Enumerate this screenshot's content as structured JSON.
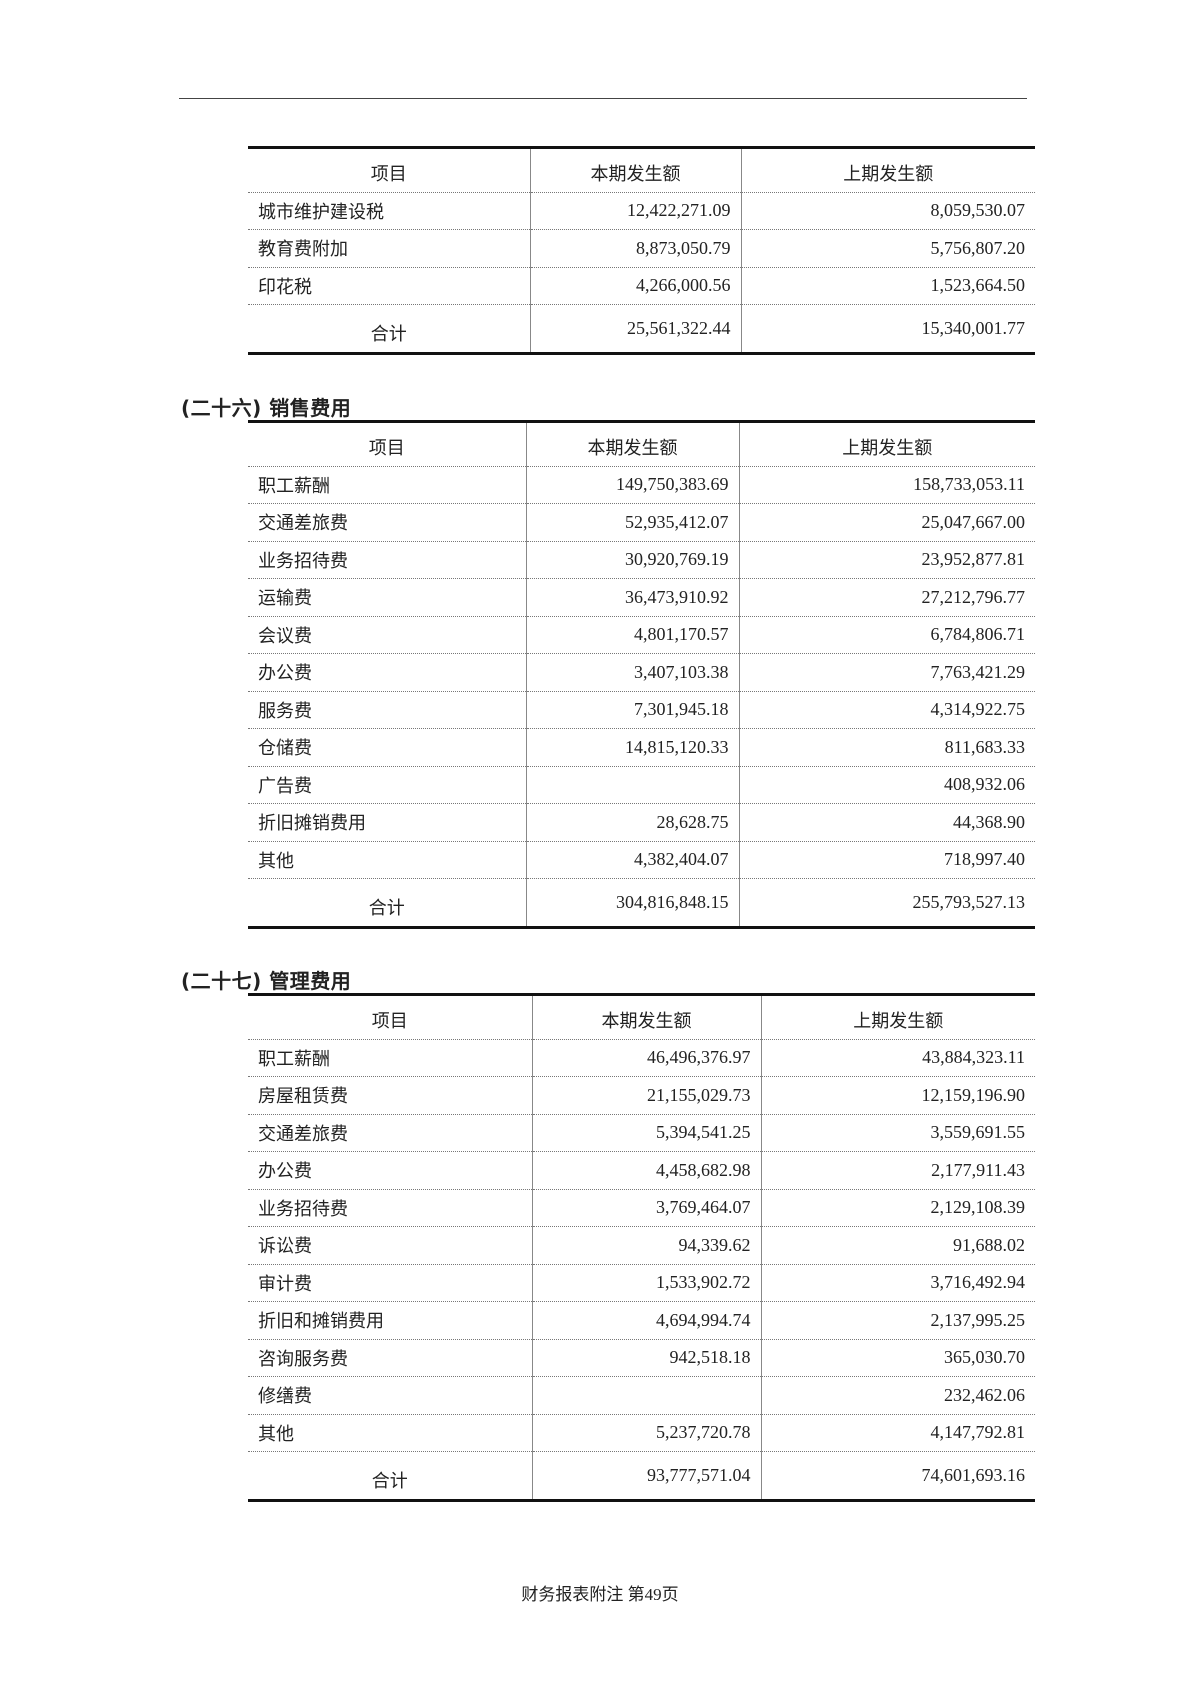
{
  "tables": [
    {
      "title": "",
      "headers": [
        "项目",
        "本期发生额",
        "上期发生额"
      ],
      "rows": [
        [
          "城市维护建设税",
          "12,422,271.09",
          "8,059,530.07"
        ],
        [
          "教育费附加",
          "8,873,050.79",
          "5,756,807.20"
        ],
        [
          "印花税",
          "4,266,000.56",
          "1,523,664.50"
        ]
      ],
      "total": [
        "合计",
        "25,561,322.44",
        "15,340,001.77"
      ]
    },
    {
      "title": "(二十六) 销售费用",
      "headers": [
        "项目",
        "本期发生额",
        "上期发生额"
      ],
      "rows": [
        [
          "职工薪酬",
          "149,750,383.69",
          "158,733,053.11"
        ],
        [
          "交通差旅费",
          "52,935,412.07",
          "25,047,667.00"
        ],
        [
          "业务招待费",
          "30,920,769.19",
          "23,952,877.81"
        ],
        [
          "运输费",
          "36,473,910.92",
          "27,212,796.77"
        ],
        [
          "会议费",
          "4,801,170.57",
          "6,784,806.71"
        ],
        [
          "办公费",
          "3,407,103.38",
          "7,763,421.29"
        ],
        [
          "服务费",
          "7,301,945.18",
          "4,314,922.75"
        ],
        [
          "仓储费",
          "14,815,120.33",
          "811,683.33"
        ],
        [
          "广告费",
          "",
          "408,932.06"
        ],
        [
          "折旧摊销费用",
          "28,628.75",
          "44,368.90"
        ],
        [
          "其他",
          "4,382,404.07",
          "718,997.40"
        ]
      ],
      "total": [
        "合计",
        "304,816,848.15",
        "255,793,527.13"
      ]
    },
    {
      "title": "(二十七) 管理费用",
      "headers": [
        "项目",
        "本期发生额",
        "上期发生额"
      ],
      "rows": [
        [
          "职工薪酬",
          "46,496,376.97",
          "43,884,323.11"
        ],
        [
          "房屋租赁费",
          "21,155,029.73",
          "12,159,196.90"
        ],
        [
          "交通差旅费",
          "5,394,541.25",
          "3,559,691.55"
        ],
        [
          "办公费",
          "4,458,682.98",
          "2,177,911.43"
        ],
        [
          "业务招待费",
          "3,769,464.07",
          "2,129,108.39"
        ],
        [
          "诉讼费",
          "94,339.62",
          "91,688.02"
        ],
        [
          "审计费",
          "1,533,902.72",
          "3,716,492.94"
        ],
        [
          "折旧和摊销费用",
          "4,694,994.74",
          "2,137,995.25"
        ],
        [
          "咨询服务费",
          "942,518.18",
          "365,030.70"
        ],
        [
          "修缮费",
          "",
          "232,462.06"
        ],
        [
          "其他",
          "5,237,720.78",
          "4,147,792.81"
        ]
      ],
      "total": [
        "合计",
        "93,777,571.04",
        "74,601,693.16"
      ]
    }
  ],
  "footer": "财务报表附注  第49页"
}
